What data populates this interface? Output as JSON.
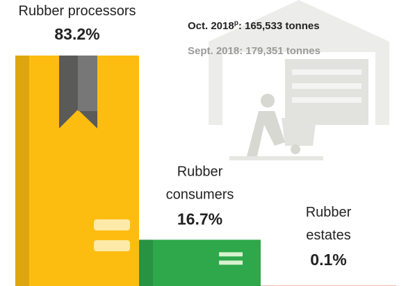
{
  "chart_data": {
    "type": "bar",
    "categories": [
      "Rubber processors",
      "Rubber consumers",
      "Rubber estates"
    ],
    "values": [
      83.2,
      16.7,
      0.1
    ],
    "value_labels": [
      "83.2%",
      "16.7%",
      "0.1%"
    ],
    "colors": [
      "#fdbd10",
      "#2ea84a",
      "#e8591a"
    ],
    "annotations": [
      {
        "text": "Oct. 2018",
        "sup": "p",
        "rest": ": 165,533  tonnes"
      },
      {
        "text": "Sept. 2018: 179,351  tonnes"
      }
    ]
  }
}
